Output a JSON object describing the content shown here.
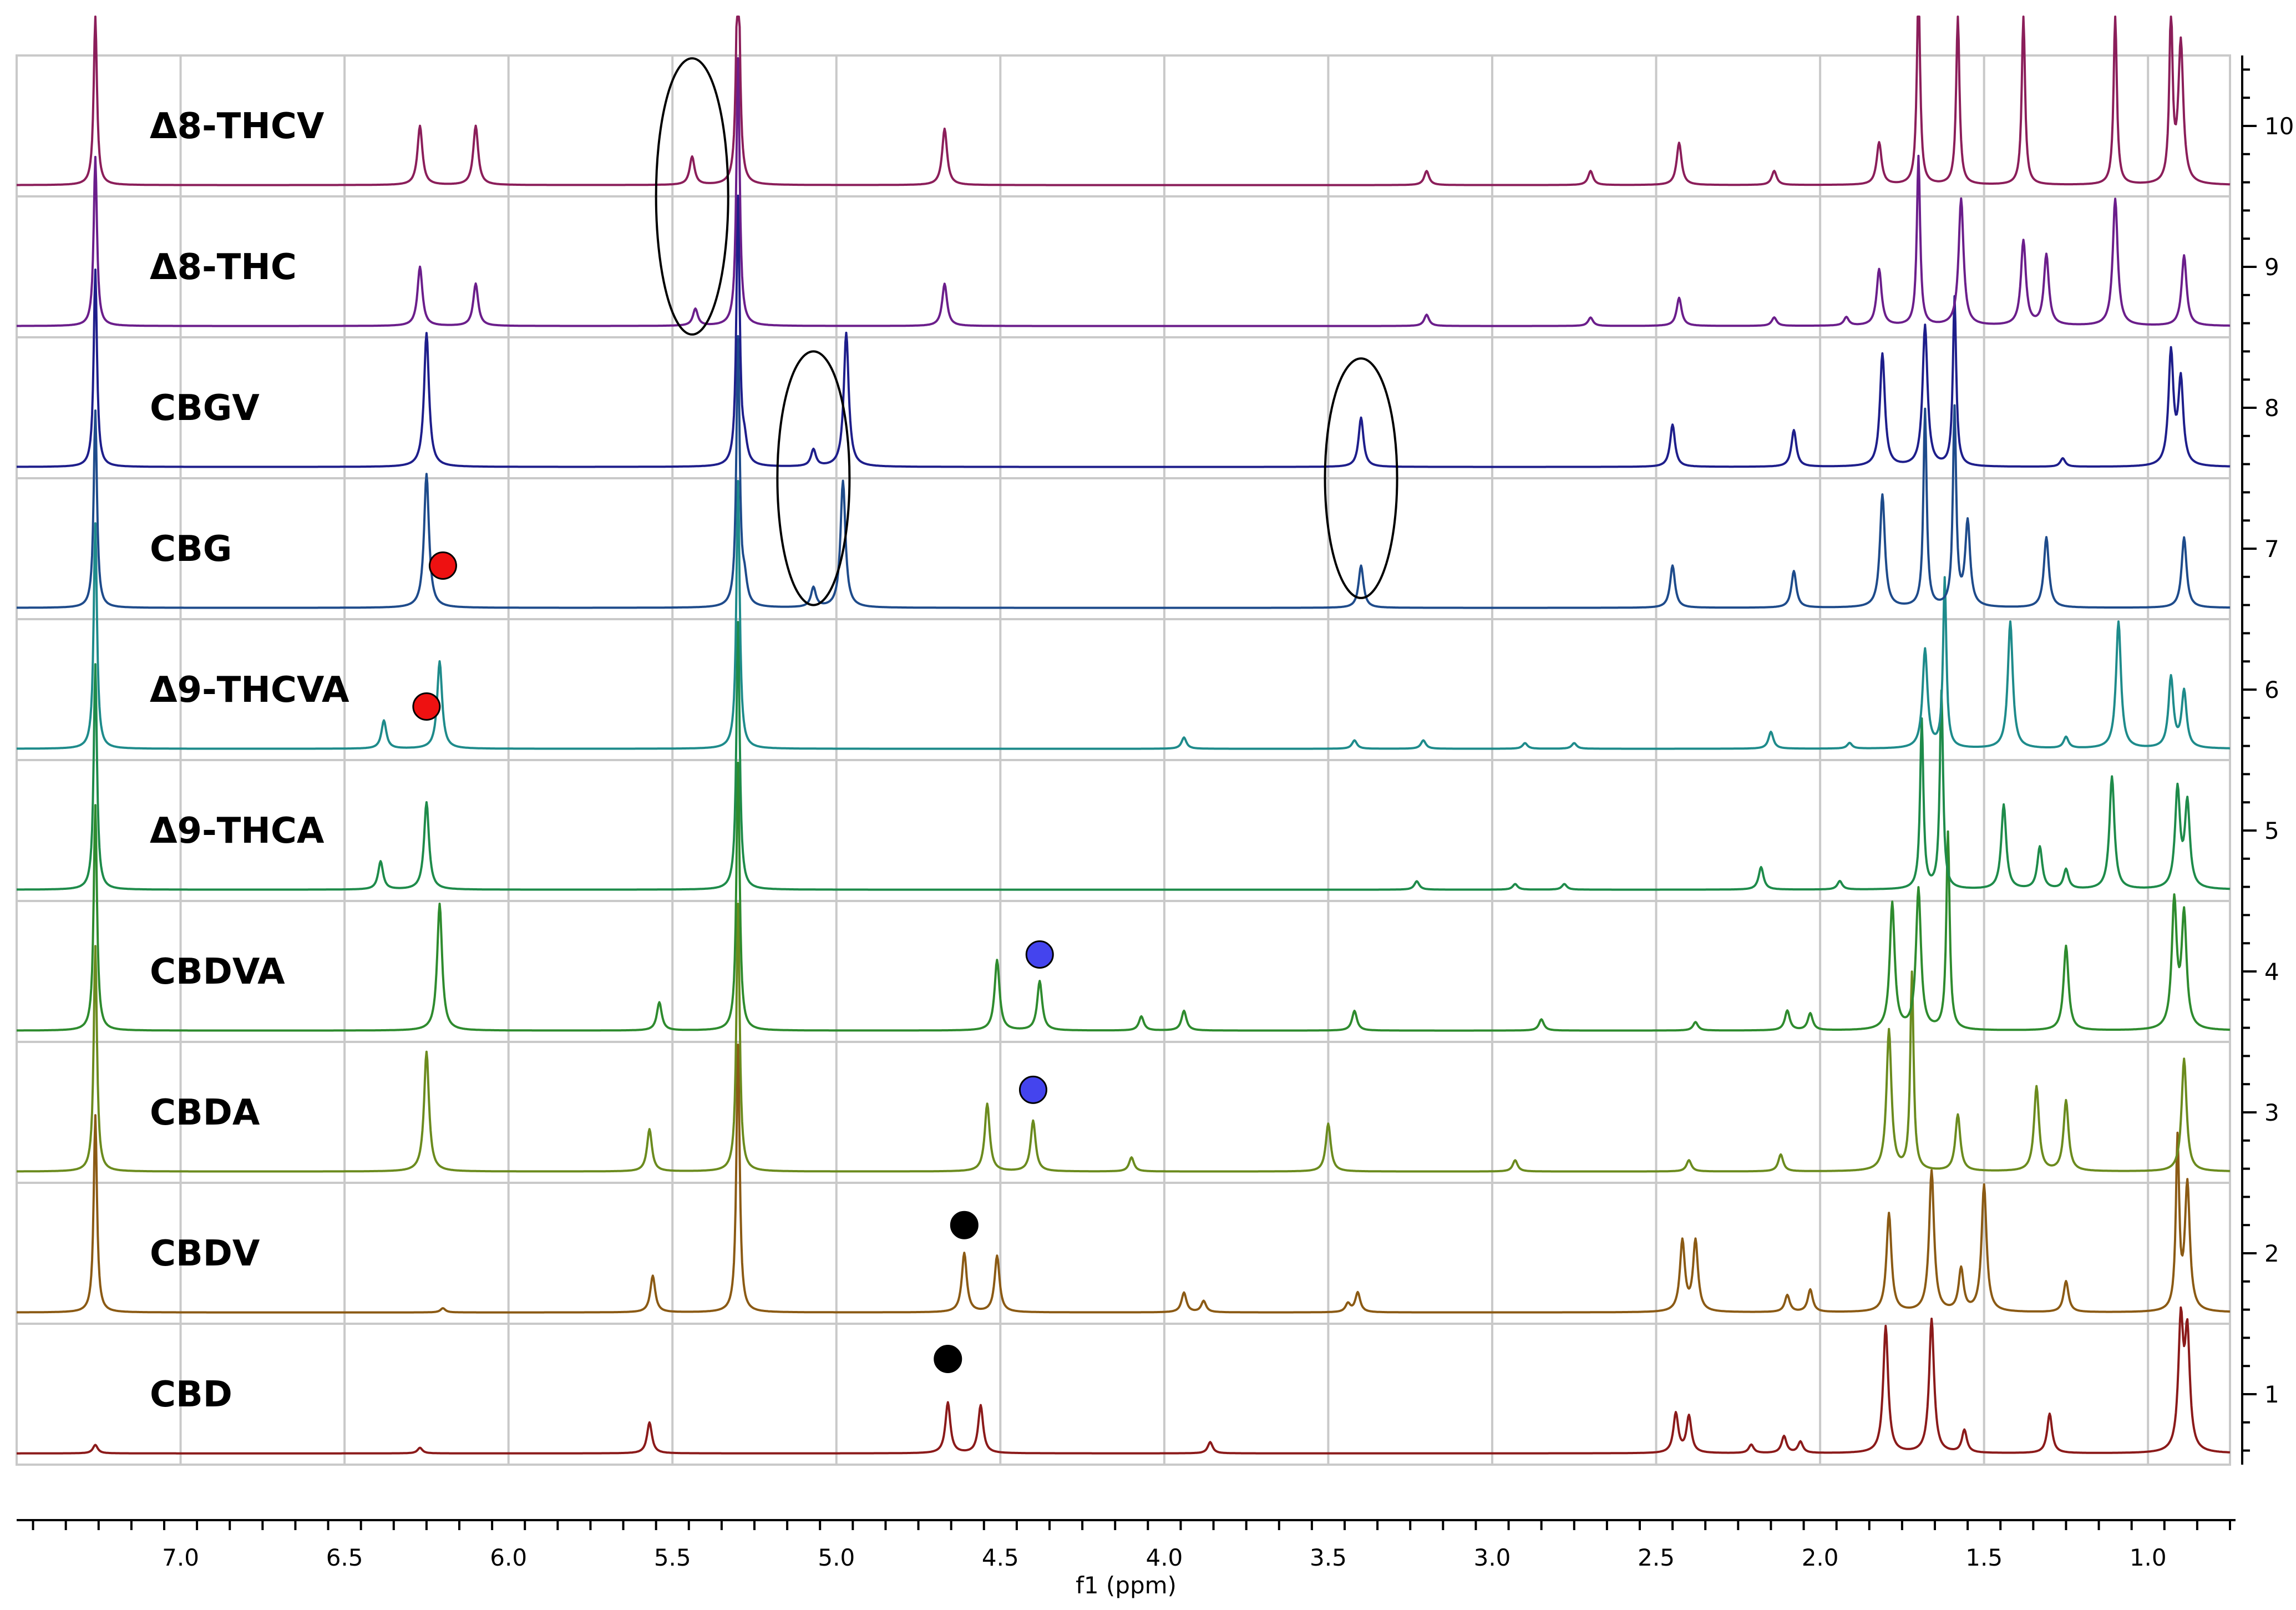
{
  "chart_data": {
    "type": "line",
    "subtype": "stacked NMR spectra",
    "xlabel": "f1 (ppm)",
    "x_reversed": true,
    "xlim": [
      7.5,
      0.75
    ],
    "x_ticks": [
      7.0,
      6.5,
      6.0,
      5.5,
      5.0,
      4.5,
      4.0,
      3.5,
      3.0,
      2.5,
      2.0,
      1.5,
      1.0
    ],
    "x_tick_labels": [
      "7.0",
      "6.5",
      "6.0",
      "5.5",
      "5.0",
      "4.5",
      "4.0",
      "3.5",
      "3.0",
      "2.5",
      "2.0",
      "1.5",
      "1.0"
    ],
    "y_ticks": [
      1,
      2,
      3,
      4,
      5,
      6,
      7,
      8,
      9,
      10
    ],
    "y_tick_labels": [
      "1",
      "2",
      "3",
      "4",
      "5",
      "6",
      "7",
      "8",
      "9",
      "10"
    ],
    "ylim": [
      0.5,
      10.5
    ],
    "grid": true,
    "series": [
      {
        "name": "CBD",
        "offset": 1,
        "color": "#8b1a1a",
        "peaks": [
          [
            7.26,
            0.06
          ],
          [
            6.27,
            0.04
          ],
          [
            5.57,
            0.22
          ],
          [
            4.66,
            0.36
          ],
          [
            4.56,
            0.34
          ],
          [
            3.86,
            0.08
          ],
          [
            2.44,
            0.28
          ],
          [
            2.4,
            0.26
          ],
          [
            2.21,
            0.06
          ],
          [
            2.11,
            0.12
          ],
          [
            2.06,
            0.08
          ],
          [
            1.8,
            0.9
          ],
          [
            1.66,
            0.95
          ],
          [
            1.56,
            0.16
          ],
          [
            1.3,
            0.28
          ],
          [
            0.9,
            0.9
          ],
          [
            0.88,
            0.8
          ]
        ]
      },
      {
        "name": "CBDV",
        "offset": 2,
        "color": "#8b5a14",
        "peaks": [
          [
            7.26,
            1.4
          ],
          [
            6.2,
            0.03
          ],
          [
            5.56,
            0.26
          ],
          [
            5.3,
            1.9
          ],
          [
            4.61,
            0.42
          ],
          [
            4.51,
            0.4
          ],
          [
            3.94,
            0.14
          ],
          [
            3.88,
            0.08
          ],
          [
            3.44,
            0.06
          ],
          [
            3.41,
            0.14
          ],
          [
            2.42,
            0.5
          ],
          [
            2.38,
            0.5
          ],
          [
            2.1,
            0.12
          ],
          [
            2.03,
            0.16
          ],
          [
            1.79,
            0.7
          ],
          [
            1.66,
            1.0
          ],
          [
            1.57,
            0.3
          ],
          [
            1.5,
            0.9
          ],
          [
            1.25,
            0.22
          ],
          [
            0.91,
            1.2
          ],
          [
            0.88,
            0.9
          ]
        ]
      },
      {
        "name": "CBDA",
        "offset": 3,
        "color": "#6b8b1e",
        "peaks": [
          [
            7.26,
            1.6
          ],
          [
            6.25,
            0.85
          ],
          [
            5.57,
            0.3
          ],
          [
            5.3,
            1.9
          ],
          [
            4.54,
            0.48
          ],
          [
            4.4,
            0.36
          ],
          [
            4.1,
            0.1
          ],
          [
            3.5,
            0.34
          ],
          [
            2.93,
            0.08
          ],
          [
            2.4,
            0.08
          ],
          [
            2.12,
            0.12
          ],
          [
            1.79,
            1.0
          ],
          [
            1.72,
            1.4
          ],
          [
            1.58,
            0.4
          ],
          [
            1.34,
            0.6
          ],
          [
            1.25,
            0.5
          ],
          [
            0.89,
            0.8
          ]
        ]
      },
      {
        "name": "CBDVA",
        "offset": 4,
        "color": "#2e8b2e",
        "peaks": [
          [
            7.26,
            1.6
          ],
          [
            6.21,
            0.9
          ],
          [
            5.54,
            0.2
          ],
          [
            5.3,
            1.9
          ],
          [
            4.51,
            0.5
          ],
          [
            4.38,
            0.35
          ],
          [
            4.07,
            0.1
          ],
          [
            3.94,
            0.14
          ],
          [
            3.42,
            0.14
          ],
          [
            2.85,
            0.08
          ],
          [
            2.38,
            0.06
          ],
          [
            2.1,
            0.14
          ],
          [
            2.03,
            0.12
          ],
          [
            1.78,
            0.9
          ],
          [
            1.7,
            1.0
          ],
          [
            1.61,
            1.4
          ],
          [
            1.25,
            0.6
          ],
          [
            0.92,
            0.9
          ],
          [
            0.89,
            0.8
          ]
        ]
      },
      {
        "name": "Δ9-THCA",
        "offset": 5,
        "color": "#1e8b4a",
        "peaks": [
          [
            7.26,
            1.6
          ],
          [
            6.39,
            0.2
          ],
          [
            6.25,
            0.62
          ],
          [
            5.3,
            1.9
          ],
          [
            3.23,
            0.06
          ],
          [
            2.93,
            0.04
          ],
          [
            2.78,
            0.04
          ],
          [
            2.18,
            0.16
          ],
          [
            1.94,
            0.06
          ],
          [
            1.69,
            1.2
          ],
          [
            1.63,
            1.4
          ],
          [
            1.44,
            0.6
          ],
          [
            1.33,
            0.3
          ],
          [
            1.25,
            0.14
          ],
          [
            1.11,
            0.8
          ],
          [
            0.91,
            0.7
          ],
          [
            0.88,
            0.6
          ]
        ]
      },
      {
        "name": "Δ9-THCVA",
        "offset": 6,
        "color": "#1e8b8b",
        "peaks": [
          [
            7.26,
            1.6
          ],
          [
            6.38,
            0.2
          ],
          [
            6.21,
            0.62
          ],
          [
            5.3,
            1.9
          ],
          [
            3.94,
            0.08
          ],
          [
            3.42,
            0.06
          ],
          [
            3.21,
            0.06
          ],
          [
            2.9,
            0.04
          ],
          [
            2.75,
            0.04
          ],
          [
            2.15,
            0.12
          ],
          [
            1.91,
            0.04
          ],
          [
            1.68,
            0.7
          ],
          [
            1.62,
            1.2
          ],
          [
            1.42,
            0.9
          ],
          [
            1.25,
            0.08
          ],
          [
            1.09,
            0.9
          ],
          [
            0.93,
            0.5
          ],
          [
            0.89,
            0.4
          ]
        ]
      },
      {
        "name": "CBG",
        "offset": 7,
        "color": "#1e4b8b",
        "peaks": [
          [
            7.26,
            1.4
          ],
          [
            6.25,
            0.95
          ],
          [
            5.3,
            1.9
          ],
          [
            5.28,
            0.16
          ],
          [
            5.07,
            0.14
          ],
          [
            4.98,
            0.9
          ],
          [
            3.4,
            0.3
          ],
          [
            2.45,
            0.3
          ],
          [
            2.08,
            0.26
          ],
          [
            1.81,
            0.8
          ],
          [
            1.68,
            1.4
          ],
          [
            1.59,
            1.4
          ],
          [
            1.55,
            0.6
          ],
          [
            1.31,
            0.5
          ],
          [
            0.89,
            0.5
          ]
        ]
      },
      {
        "name": "CBGV",
        "offset": 8,
        "color": "#1e1e8b",
        "peaks": [
          [
            7.26,
            1.4
          ],
          [
            6.25,
            0.95
          ],
          [
            5.3,
            1.9
          ],
          [
            5.28,
            0.14
          ],
          [
            5.07,
            0.12
          ],
          [
            4.97,
            0.95
          ],
          [
            3.4,
            0.35
          ],
          [
            2.45,
            0.3
          ],
          [
            2.08,
            0.26
          ],
          [
            1.81,
            0.8
          ],
          [
            1.68,
            1.0
          ],
          [
            1.59,
            1.2
          ],
          [
            1.26,
            0.06
          ],
          [
            0.93,
            0.8
          ],
          [
            0.9,
            0.6
          ]
        ]
      },
      {
        "name": "Δ8-THC",
        "offset": 9,
        "color": "#6b1e8b",
        "peaks": [
          [
            7.26,
            1.2
          ],
          [
            6.27,
            0.42
          ],
          [
            6.1,
            0.3
          ],
          [
            5.43,
            0.12
          ],
          [
            5.3,
            1.9
          ],
          [
            4.67,
            0.3
          ],
          [
            3.2,
            0.08
          ],
          [
            2.7,
            0.06
          ],
          [
            2.43,
            0.2
          ],
          [
            2.14,
            0.06
          ],
          [
            1.92,
            0.06
          ],
          [
            1.82,
            0.4
          ],
          [
            1.7,
            1.2
          ],
          [
            1.57,
            0.9
          ],
          [
            1.38,
            0.6
          ],
          [
            1.31,
            0.5
          ],
          [
            1.1,
            0.9
          ],
          [
            0.89,
            0.5
          ]
        ]
      },
      {
        "name": "Δ8-THCV",
        "offset": 10,
        "color": "#8b1e5a",
        "peaks": [
          [
            7.26,
            1.2
          ],
          [
            6.27,
            0.42
          ],
          [
            6.1,
            0.42
          ],
          [
            5.44,
            0.2
          ],
          [
            5.3,
            1.9
          ],
          [
            4.67,
            0.4
          ],
          [
            3.2,
            0.1
          ],
          [
            2.7,
            0.1
          ],
          [
            2.43,
            0.3
          ],
          [
            2.14,
            0.1
          ],
          [
            1.82,
            0.3
          ],
          [
            1.7,
            1.4
          ],
          [
            1.58,
            1.2
          ],
          [
            1.38,
            1.2
          ],
          [
            1.1,
            1.2
          ],
          [
            0.93,
            1.2
          ],
          [
            0.9,
            1.0
          ]
        ]
      }
    ],
    "annotations": {
      "ellipses": [
        {
          "cx": 5.44,
          "cy": 9.5,
          "rx": 0.11,
          "ry": 0.98
        },
        {
          "cx": 5.07,
          "cy": 7.5,
          "rx": 0.11,
          "ry": 0.9
        },
        {
          "cx": 3.4,
          "cy": 7.5,
          "rx": 0.11,
          "ry": 0.85
        }
      ],
      "markers": [
        {
          "x": 6.2,
          "y": 6.88,
          "color": "#ee1111"
        },
        {
          "x": 6.25,
          "y": 5.88,
          "color": "#ee1111"
        },
        {
          "x": 4.38,
          "y": 4.12,
          "color": "#4444ee"
        },
        {
          "x": 4.4,
          "y": 3.16,
          "color": "#4444ee"
        },
        {
          "x": 4.61,
          "y": 2.2,
          "color": "#000000"
        },
        {
          "x": 4.66,
          "y": 1.25,
          "color": "#000000"
        }
      ]
    }
  }
}
